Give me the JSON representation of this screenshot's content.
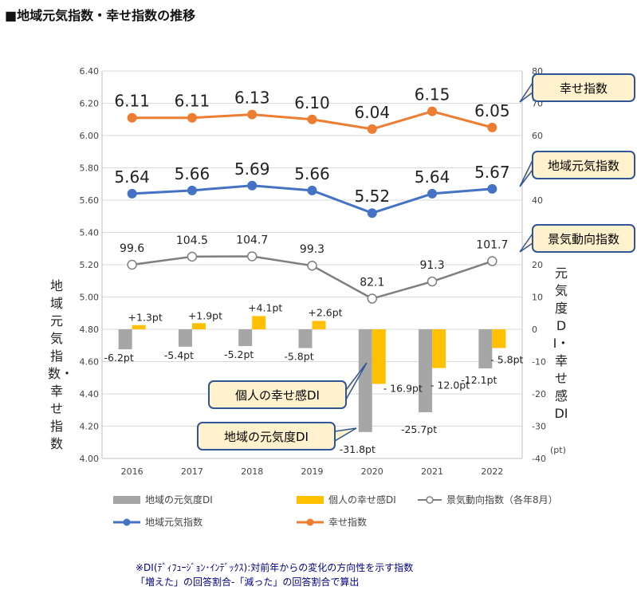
{
  "title": "■地域元気指数・幸せ指数の推移",
  "left_axis_label": "地域元気指数・幸せ指数",
  "right_axis_label": "元気度DI・幸せ感DI",
  "right_axis_unit": "(pt)",
  "footnote": "※DI(ﾃﾞｨﾌｭｰｼﾞｮﾝ･ｲﾝﾃﾞｯｸｽ):対前年からの変化の方向性を示す指数\n「増えた」の回答割合-「減った」の回答割合で算出",
  "colors": {
    "gray_bar": "#a6a6a6",
    "yellow_bar": "#ffc000",
    "gray_line": "#7f7f7f",
    "blue_line": "#4472c4",
    "orange_line": "#ed7d31",
    "callout_fill": "#fff2cc",
    "callout_border": "#2f5597"
  },
  "chart_data": {
    "type": "bar+line",
    "categories": [
      "2016",
      "2017",
      "2018",
      "2019",
      "2020",
      "2021",
      "2022"
    ],
    "left_axis": {
      "ylim": [
        4.0,
        6.4
      ],
      "ticks": [
        "4.00",
        "4.20",
        "4.40",
        "4.60",
        "4.80",
        "5.00",
        "5.20",
        "5.40",
        "5.60",
        "5.80",
        "6.00",
        "6.20",
        "6.40"
      ]
    },
    "right_axis": {
      "ylim": [
        -40,
        80
      ],
      "ticks": [
        "-40",
        "-30",
        "-20",
        "-10",
        "0",
        "10",
        "20",
        "30",
        "40",
        "50",
        "60",
        "70",
        "80"
      ]
    },
    "bar_series": [
      {
        "name": "地域の元気度DI",
        "axis": "right",
        "values": [
          -6.2,
          -5.4,
          -5.2,
          -5.8,
          -31.8,
          -25.7,
          -12.1
        ],
        "labels": [
          "-6.2pt",
          "-5.4pt",
          "-5.2pt",
          "-5.8pt",
          "-31.8pt",
          "-25.7pt",
          "-12.1pt"
        ]
      },
      {
        "name": "個人の幸せ感DI",
        "axis": "right",
        "values": [
          1.3,
          1.9,
          4.1,
          2.6,
          -16.9,
          -12.0,
          -5.8
        ],
        "labels": [
          "+1.3pt",
          "+1.9pt",
          "+4.1pt",
          "+2.6pt",
          "- 16.9pt",
          "- 12.0pt",
          "- 5.8pt"
        ]
      }
    ],
    "line_series": [
      {
        "name": "景気動向指数（各年8月）",
        "axis": "right",
        "values": [
          99.6,
          104.5,
          104.7,
          99.3,
          82.1,
          91.3,
          101.7
        ],
        "plot_right": [
          20,
          22.5,
          22.6,
          19.7,
          9.5,
          14.8,
          21.1
        ],
        "labels": [
          "99.6",
          "104.5",
          "104.7",
          "99.3",
          "82.1",
          "91.3",
          "101.7"
        ]
      },
      {
        "name": "地域元気指数",
        "axis": "left",
        "values": [
          5.64,
          5.66,
          5.69,
          5.66,
          5.52,
          5.64,
          5.67
        ],
        "labels": [
          "5.64",
          "5.66",
          "5.69",
          "5.66",
          "5.52",
          "5.64",
          "5.67"
        ]
      },
      {
        "name": "幸せ指数",
        "axis": "left",
        "values": [
          6.11,
          6.11,
          6.13,
          6.1,
          6.04,
          6.15,
          6.05
        ],
        "labels": [
          "6.11",
          "6.11",
          "6.13",
          "6.10",
          "6.04",
          "6.15",
          "6.05"
        ]
      }
    ],
    "callouts": [
      "幸せ指数",
      "地域元気指数",
      "景気動向指数",
      "個人の幸せ感DI",
      "地域の元気度DI"
    ],
    "legend": [
      "地域の元気度DI",
      "個人の幸せ感DI",
      "景気動向指数（各年8月）",
      "地域元気指数",
      "幸せ指数"
    ],
    "grid": true,
    "legend_position": "bottom"
  }
}
